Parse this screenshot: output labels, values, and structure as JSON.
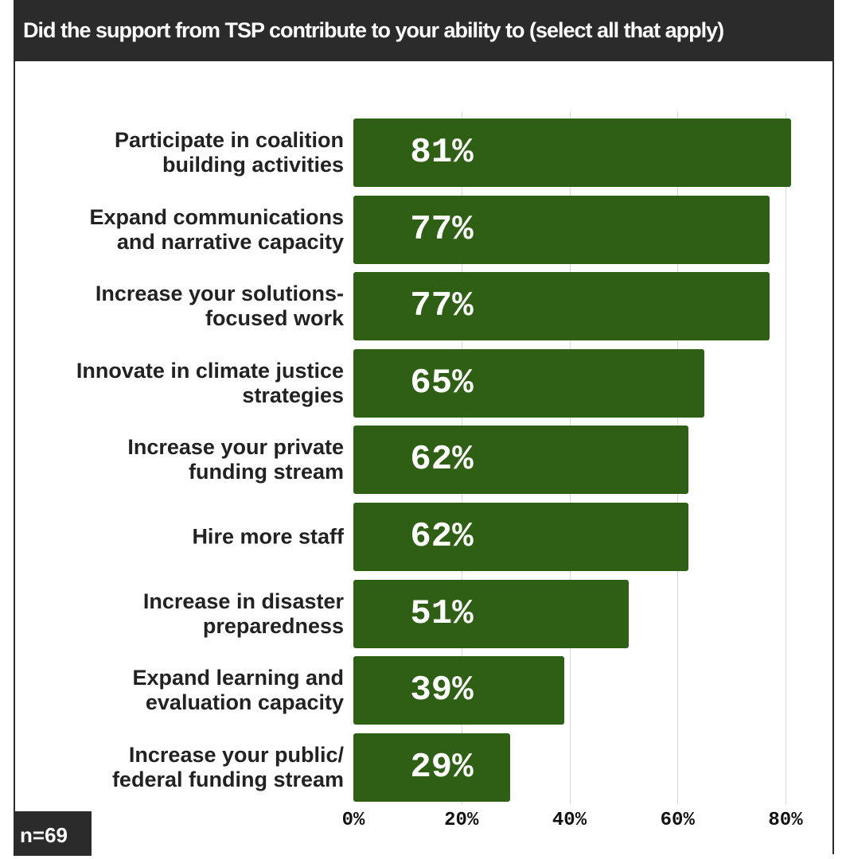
{
  "chart_data": {
    "type": "barh",
    "title": "Did the support from TSP contribute to your ability to (select all that apply)",
    "categories": [
      "Participate in coalition\nbuilding activities",
      "Expand communications\nand narrative capacity",
      "Increase your solutions-\nfocused work",
      "Innovate in climate justice\nstrategies",
      "Increase your private\nfunding stream",
      "Hire more staff",
      "Increase in disaster\npreparedness",
      "Expand learning and\nevaluation capacity",
      "Increase your public/\nfederal funding stream"
    ],
    "values": [
      81,
      77,
      77,
      65,
      62,
      62,
      51,
      39,
      29
    ],
    "value_labels": [
      "81%",
      "77%",
      "77%",
      "65%",
      "62%",
      "62%",
      "51%",
      "39%",
      "29%"
    ],
    "color": "#2e5f14",
    "xlim": [
      0,
      80
    ],
    "xticks": [
      {
        "value": 0,
        "label": "0%"
      },
      {
        "value": 20,
        "label": "20%"
      },
      {
        "value": 40,
        "label": "40%"
      },
      {
        "value": 60,
        "label": "60%"
      },
      {
        "value": 80,
        "label": "80%"
      }
    ],
    "grid": true,
    "note": "n=69"
  }
}
